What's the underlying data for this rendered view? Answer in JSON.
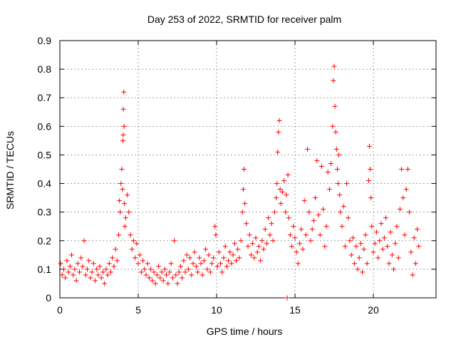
{
  "chart_data": {
    "type": "scatter",
    "title": "Day 253 of 2022, SRMTID for receiver palm",
    "xlabel": "GPS time / hours",
    "ylabel": "SRMTID / TECUs",
    "xlim": [
      0,
      24
    ],
    "ylim": [
      0,
      0.9
    ],
    "xticks": [
      0,
      5,
      10,
      15,
      20
    ],
    "xtick_labels": [
      "0",
      "5",
      "10",
      "15",
      "20"
    ],
    "yticks": [
      0,
      0.1,
      0.2,
      0.3,
      0.4,
      0.5,
      0.6,
      0.7,
      0.8,
      0.9
    ],
    "ytick_labels": [
      "0",
      "0.1",
      "0.2",
      "0.3",
      "0.4",
      "0.5",
      "0.6",
      "0.7",
      "0.8",
      "0.9"
    ],
    "grid": true,
    "marker": "+",
    "series": [
      {
        "name": "SRMTID",
        "color": "#ff0000",
        "points": [
          [
            0.05,
            0.12
          ],
          [
            0.15,
            0.08
          ],
          [
            0.25,
            0.1
          ],
          [
            0.35,
            0.07
          ],
          [
            0.45,
            0.13
          ],
          [
            0.55,
            0.09
          ],
          [
            0.65,
            0.11
          ],
          [
            0.75,
            0.15
          ],
          [
            0.85,
            0.08
          ],
          [
            0.95,
            0.1
          ],
          [
            1.05,
            0.06
          ],
          [
            1.15,
            0.12
          ],
          [
            1.25,
            0.09
          ],
          [
            1.35,
            0.14
          ],
          [
            1.45,
            0.11
          ],
          [
            1.55,
            0.2
          ],
          [
            1.65,
            0.08
          ],
          [
            1.75,
            0.1
          ],
          [
            1.85,
            0.13
          ],
          [
            1.95,
            0.07
          ],
          [
            2.05,
            0.09
          ],
          [
            2.15,
            0.12
          ],
          [
            2.25,
            0.06
          ],
          [
            2.35,
            0.1
          ],
          [
            2.45,
            0.08
          ],
          [
            2.55,
            0.11
          ],
          [
            2.65,
            0.07
          ],
          [
            2.75,
            0.09
          ],
          [
            2.85,
            0.05
          ],
          [
            2.95,
            0.1
          ],
          [
            3.05,
            0.08
          ],
          [
            3.15,
            0.12
          ],
          [
            3.25,
            0.09
          ],
          [
            3.35,
            0.14
          ],
          [
            3.45,
            0.11
          ],
          [
            3.55,
            0.17
          ],
          [
            3.65,
            0.13
          ],
          [
            3.75,
            0.22
          ],
          [
            3.8,
            0.34
          ],
          [
            3.85,
            0.3
          ],
          [
            3.9,
            0.4
          ],
          [
            3.95,
            0.45
          ],
          [
            4.0,
            0.38
          ],
          [
            4.02,
            0.55
          ],
          [
            4.04,
            0.57
          ],
          [
            4.05,
            0.66
          ],
          [
            4.08,
            0.72
          ],
          [
            4.1,
            0.6
          ],
          [
            4.12,
            0.33
          ],
          [
            4.15,
            0.25
          ],
          [
            4.2,
            0.28
          ],
          [
            4.3,
            0.36
          ],
          [
            4.4,
            0.3
          ],
          [
            4.5,
            0.22
          ],
          [
            4.6,
            0.17
          ],
          [
            4.7,
            0.2
          ],
          [
            4.8,
            0.14
          ],
          [
            4.9,
            0.19
          ],
          [
            5.0,
            0.12
          ],
          [
            5.1,
            0.15
          ],
          [
            5.2,
            0.09
          ],
          [
            5.3,
            0.13
          ],
          [
            5.4,
            0.1
          ],
          [
            5.5,
            0.08
          ],
          [
            5.6,
            0.12
          ],
          [
            5.7,
            0.07
          ],
          [
            5.8,
            0.1
          ],
          [
            5.9,
            0.06
          ],
          [
            6.0,
            0.09
          ],
          [
            6.1,
            0.05
          ],
          [
            6.2,
            0.08
          ],
          [
            6.3,
            0.11
          ],
          [
            6.4,
            0.07
          ],
          [
            6.5,
            0.09
          ],
          [
            6.6,
            0.06
          ],
          [
            6.7,
            0.1
          ],
          [
            6.8,
            0.08
          ],
          [
            6.9,
            0.05
          ],
          [
            7.0,
            0.09
          ],
          [
            7.1,
            0.12
          ],
          [
            7.2,
            0.07
          ],
          [
            7.3,
            0.2
          ],
          [
            7.4,
            0.08
          ],
          [
            7.5,
            0.05
          ],
          [
            7.6,
            0.09
          ],
          [
            7.7,
            0.11
          ],
          [
            7.8,
            0.07
          ],
          [
            7.9,
            0.13
          ],
          [
            8.0,
            0.09
          ],
          [
            8.1,
            0.15
          ],
          [
            8.2,
            0.1
          ],
          [
            8.3,
            0.14
          ],
          [
            8.4,
            0.08
          ],
          [
            8.5,
            0.12
          ],
          [
            8.6,
            0.16
          ],
          [
            8.7,
            0.11
          ],
          [
            8.8,
            0.09
          ],
          [
            8.9,
            0.14
          ],
          [
            9.0,
            0.12
          ],
          [
            9.1,
            0.08
          ],
          [
            9.2,
            0.13
          ],
          [
            9.3,
            0.17
          ],
          [
            9.4,
            0.1
          ],
          [
            9.5,
            0.15
          ],
          [
            9.6,
            0.09
          ],
          [
            9.7,
            0.12
          ],
          [
            9.8,
            0.14
          ],
          [
            9.9,
            0.25
          ],
          [
            9.95,
            0.22
          ],
          [
            10.05,
            0.11
          ],
          [
            10.15,
            0.16
          ],
          [
            10.25,
            0.12
          ],
          [
            10.35,
            0.09
          ],
          [
            10.45,
            0.14
          ],
          [
            10.55,
            0.18
          ],
          [
            10.65,
            0.11
          ],
          [
            10.75,
            0.13
          ],
          [
            10.85,
            0.16
          ],
          [
            10.95,
            0.12
          ],
          [
            11.05,
            0.15
          ],
          [
            11.15,
            0.19
          ],
          [
            11.25,
            0.13
          ],
          [
            11.35,
            0.17
          ],
          [
            11.45,
            0.14
          ],
          [
            11.55,
            0.2
          ],
          [
            11.65,
            0.3
          ],
          [
            11.7,
            0.38
          ],
          [
            11.75,
            0.45
          ],
          [
            11.8,
            0.33
          ],
          [
            11.9,
            0.26
          ],
          [
            12.0,
            0.18
          ],
          [
            12.1,
            0.22
          ],
          [
            12.2,
            0.15
          ],
          [
            12.3,
            0.19
          ],
          [
            12.4,
            0.14
          ],
          [
            12.5,
            0.21
          ],
          [
            12.6,
            0.16
          ],
          [
            12.7,
            0.18
          ],
          [
            12.8,
            0.13
          ],
          [
            12.9,
            0.2
          ],
          [
            13.0,
            0.17
          ],
          [
            13.1,
            0.24
          ],
          [
            13.2,
            0.19
          ],
          [
            13.3,
            0.28
          ],
          [
            13.4,
            0.22
          ],
          [
            13.5,
            0.26
          ],
          [
            13.6,
            0.2
          ],
          [
            13.7,
            0.3
          ],
          [
            13.8,
            0.35
          ],
          [
            13.85,
            0.4
          ],
          [
            13.9,
            0.51
          ],
          [
            13.95,
            0.58
          ],
          [
            14.0,
            0.62
          ],
          [
            14.05,
            0.38
          ],
          [
            14.1,
            0.33
          ],
          [
            14.2,
            0.37
          ],
          [
            14.3,
            0.41
          ],
          [
            14.4,
            0.3
          ],
          [
            14.45,
            0.36
          ],
          [
            14.5,
            0.0
          ],
          [
            14.55,
            0.43
          ],
          [
            14.6,
            0.28
          ],
          [
            14.7,
            0.22
          ],
          [
            14.8,
            0.18
          ],
          [
            14.9,
            0.25
          ],
          [
            15.0,
            0.21
          ],
          [
            15.1,
            0.16
          ],
          [
            15.2,
            0.12
          ],
          [
            15.3,
            0.19
          ],
          [
            15.4,
            0.24
          ],
          [
            15.5,
            0.17
          ],
          [
            15.6,
            0.34
          ],
          [
            15.7,
            0.22
          ],
          [
            15.8,
            0.52
          ],
          [
            15.9,
            0.3
          ],
          [
            16.0,
            0.2
          ],
          [
            16.1,
            0.24
          ],
          [
            16.2,
            0.27
          ],
          [
            16.3,
            0.35
          ],
          [
            16.4,
            0.48
          ],
          [
            16.5,
            0.29
          ],
          [
            16.6,
            0.22
          ],
          [
            16.7,
            0.46
          ],
          [
            16.8,
            0.31
          ],
          [
            16.9,
            0.18
          ],
          [
            17.0,
            0.25
          ],
          [
            17.1,
            0.44
          ],
          [
            17.2,
            0.38
          ],
          [
            17.3,
            0.47
          ],
          [
            17.4,
            0.6
          ],
          [
            17.45,
            0.76
          ],
          [
            17.5,
            0.81
          ],
          [
            17.55,
            0.67
          ],
          [
            17.6,
            0.58
          ],
          [
            17.65,
            0.52
          ],
          [
            17.7,
            0.45
          ],
          [
            17.75,
            0.4
          ],
          [
            17.8,
            0.5
          ],
          [
            17.85,
            0.36
          ],
          [
            17.9,
            0.3
          ],
          [
            18.0,
            0.25
          ],
          [
            18.1,
            0.32
          ],
          [
            18.2,
            0.18
          ],
          [
            18.3,
            0.4
          ],
          [
            18.4,
            0.28
          ],
          [
            18.5,
            0.2
          ],
          [
            18.6,
            0.15
          ],
          [
            18.7,
            0.21
          ],
          [
            18.8,
            0.12
          ],
          [
            18.9,
            0.18
          ],
          [
            19.0,
            0.1
          ],
          [
            19.1,
            0.14
          ],
          [
            19.2,
            0.19
          ],
          [
            19.3,
            0.09
          ],
          [
            19.4,
            0.17
          ],
          [
            19.5,
            0.22
          ],
          [
            19.6,
            0.12
          ],
          [
            19.7,
            0.41
          ],
          [
            19.75,
            0.53
          ],
          [
            19.8,
            0.45
          ],
          [
            19.85,
            0.35
          ],
          [
            19.9,
            0.25
          ],
          [
            20.0,
            0.16
          ],
          [
            20.1,
            0.19
          ],
          [
            20.2,
            0.23
          ],
          [
            20.3,
            0.14
          ],
          [
            20.4,
            0.2
          ],
          [
            20.5,
            0.26
          ],
          [
            20.6,
            0.17
          ],
          [
            20.7,
            0.21
          ],
          [
            20.8,
            0.28
          ],
          [
            20.9,
            0.18
          ],
          [
            21.0,
            0.12
          ],
          [
            21.1,
            0.23
          ],
          [
            21.2,
            0.15
          ],
          [
            21.3,
            0.1
          ],
          [
            21.4,
            0.19
          ],
          [
            21.5,
            0.25
          ],
          [
            21.6,
            0.14
          ],
          [
            21.7,
            0.31
          ],
          [
            21.8,
            0.45
          ],
          [
            21.9,
            0.35
          ],
          [
            22.0,
            0.22
          ],
          [
            22.1,
            0.38
          ],
          [
            22.2,
            0.45
          ],
          [
            22.3,
            0.3
          ],
          [
            22.4,
            0.16
          ],
          [
            22.5,
            0.08
          ],
          [
            22.6,
            0.21
          ],
          [
            22.7,
            0.12
          ],
          [
            22.8,
            0.24
          ],
          [
            22.9,
            0.18
          ]
        ]
      }
    ]
  }
}
